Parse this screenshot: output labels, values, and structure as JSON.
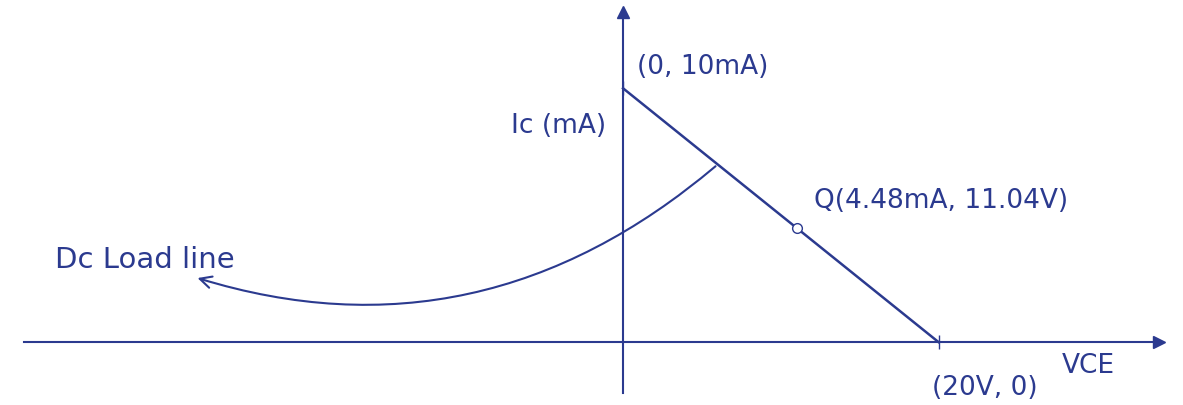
{
  "chart_data": {
    "type": "line",
    "x": [
      0,
      20
    ],
    "values": [
      10,
      0
    ],
    "color": "#2b3a8f",
    "xlim": [
      -38,
      34
    ],
    "ylim": [
      -2,
      13
    ],
    "x_label": "VCE",
    "y_label": "Ic (mA)",
    "tick_labels": false,
    "points": [
      {
        "x": 0,
        "y": 10,
        "label": "(0, 10mA)"
      },
      {
        "x": 11.04,
        "y": 4.48,
        "label": "Q(4.48mA, 11.04V)",
        "marker": "o"
      },
      {
        "x": 20,
        "y": 0,
        "label": "(20V, 0)"
      }
    ],
    "annotations": [
      {
        "text": "Dc Load line"
      }
    ]
  }
}
